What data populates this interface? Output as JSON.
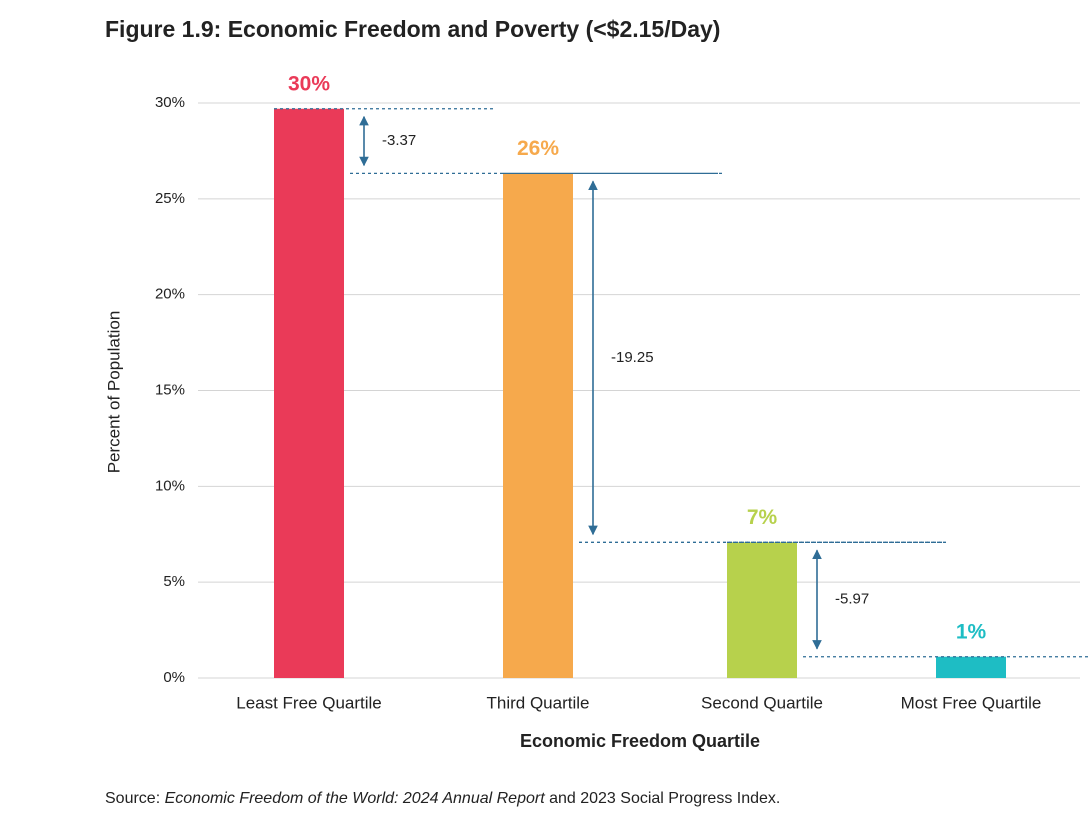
{
  "chart_data": {
    "type": "bar",
    "title": "Figure 1.9: Economic Freedom and Poverty (<$2.15/Day)",
    "x_label": "Economic Freedom Quartile",
    "y_label": "Percent of Population",
    "categories": [
      "Least Free Quartile",
      "Third Quartile",
      "Second Quartile",
      "Most Free Quartile"
    ],
    "values": [
      29.7,
      26.33,
      7.08,
      1.11
    ],
    "value_labels": [
      "30%",
      "26%",
      "7%",
      "1%"
    ],
    "colors": [
      "#ea3a58",
      "#f6a94c",
      "#b7d14c",
      "#1ebdc4"
    ],
    "ylim": [
      0,
      30
    ],
    "yticks": [
      {
        "value": 0,
        "label": "0%"
      },
      {
        "value": 5,
        "label": "5%"
      },
      {
        "value": 10,
        "label": "10%"
      },
      {
        "value": 15,
        "label": "15%"
      },
      {
        "value": 20,
        "label": "20%"
      },
      {
        "value": 25,
        "label": "25%"
      },
      {
        "value": 30,
        "label": "30%"
      }
    ],
    "grid": true,
    "annotations": [
      -3.37,
      -19.25,
      -5.97
    ],
    "source": {
      "prefix": "Source: ",
      "italic": "Economic Freedom of the World: 2024 Annual Report",
      "suffix": " and 2023 Social Progress Index."
    }
  }
}
